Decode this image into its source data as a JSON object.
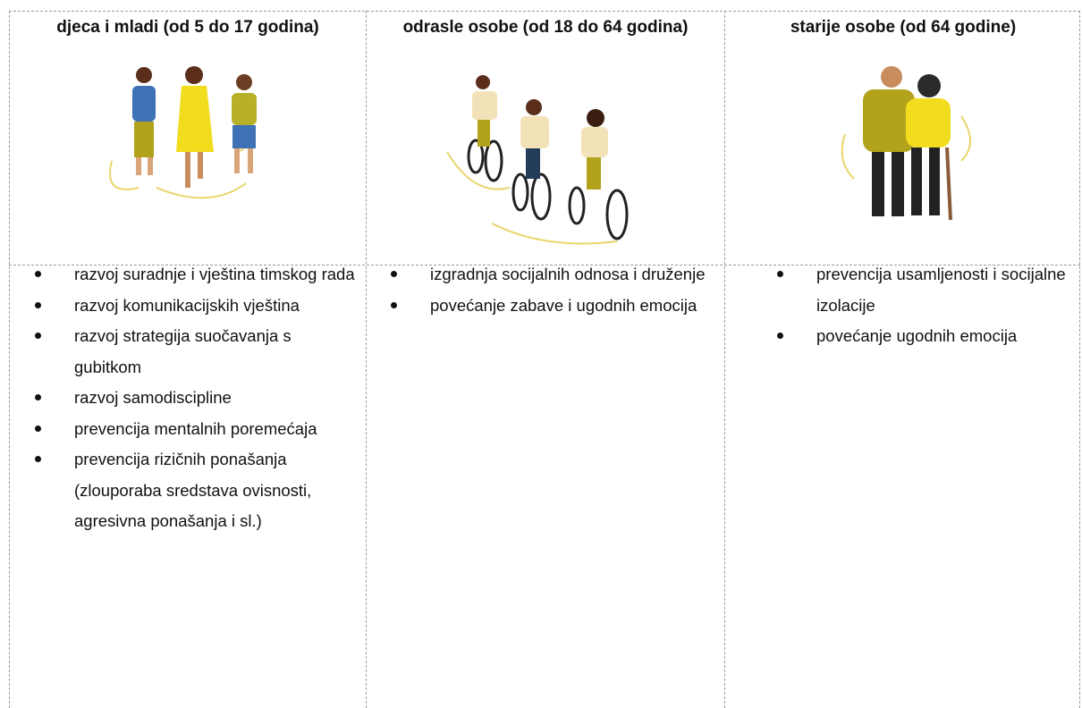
{
  "table": {
    "headers": [
      "djeca i mladi (od 5 do 17 godina)",
      "odrasle osobe (od 18 do 64 godina)",
      "starije osobe (od 64 godine)"
    ],
    "items": [
      [
        "razvoj suradnje i vještina timskog rada",
        "razvoj komunikacijskih vještina",
        "razvoj strategija suočavanja s gubitkom",
        "razvoj samodiscipline",
        "prevencija mentalnih poremećaja",
        "prevencija rizičnih ponašanja (zlouporaba sredstava ovisnosti, agresivna ponašanja i sl.)"
      ],
      [
        "izgradnja socijalnih odnosa i druženje",
        "povećanje zabave i ugodnih emocija"
      ],
      [
        "prevencija usamljenosti i socijalne izolacije",
        "povećanje ugodnih emocija"
      ]
    ]
  }
}
